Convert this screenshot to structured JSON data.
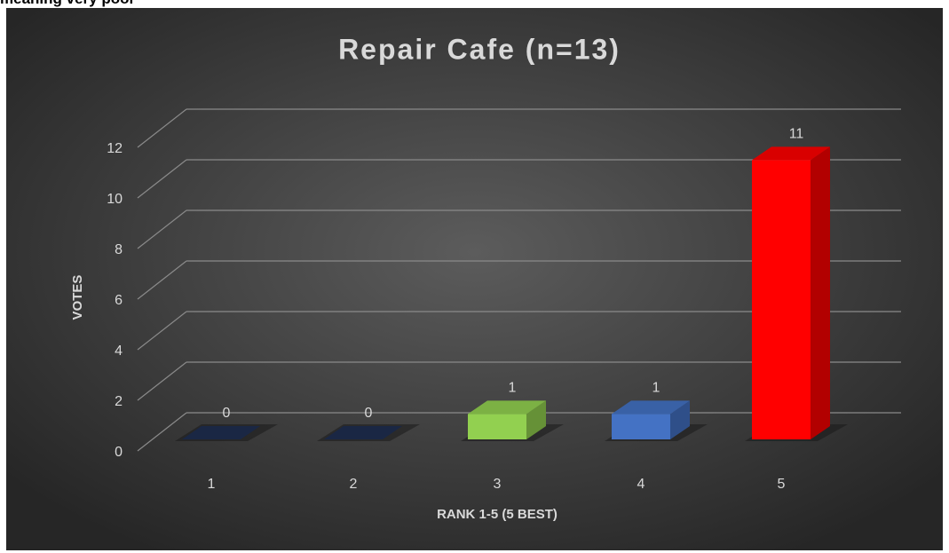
{
  "header": {
    "text": "meaning very poor"
  },
  "chart_data": {
    "type": "bar3d",
    "title": "Repair Cafe (n=13)",
    "x_label": "RANK 1-5 (5 BEST)",
    "y_label": "VOTES",
    "categories": [
      "1",
      "2",
      "3",
      "4",
      "5"
    ],
    "values": [
      0,
      0,
      1,
      1,
      11
    ],
    "colors": [
      "#1f2e50",
      "#1f2e50",
      "#92d050",
      "#4472c4",
      "#ff0000"
    ],
    "ylim": [
      0,
      12
    ],
    "yticks": [
      0,
      2,
      4,
      6,
      8,
      10,
      12
    ],
    "grid": true
  }
}
